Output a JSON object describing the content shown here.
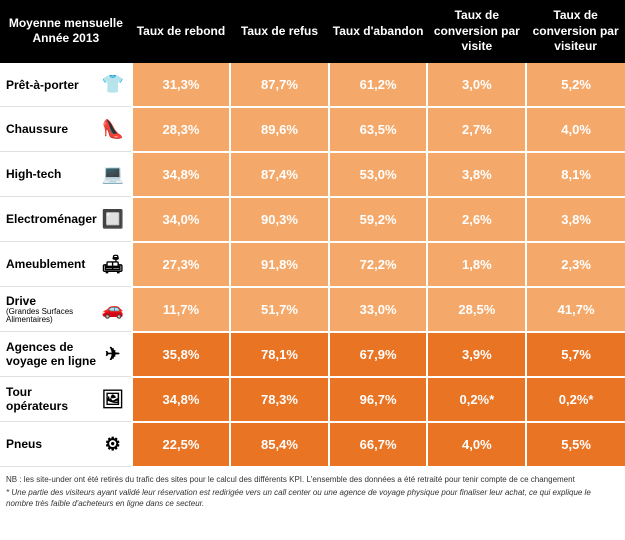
{
  "colors": {
    "header_bg": "#000000",
    "header_text": "#ffffff",
    "cell_light": "#f4a96a",
    "cell_dark": "#e87424",
    "cell_text": "#ffffff",
    "label_bg": "#ffffff",
    "label_text": "#000000"
  },
  "header": {
    "corner_line1": "Moyenne mensuelle",
    "corner_line2": "Année 2013",
    "columns": [
      "Taux de rebond",
      "Taux de refus",
      "Taux d'abandon",
      "Taux de conversion par visite",
      "Taux de conversion par visiteur"
    ]
  },
  "rows": [
    {
      "label": "Prêt-à-porter",
      "sublabel": "",
      "icon": "shirt",
      "shade": "light",
      "values": [
        "31,3%",
        "87,7%",
        "61,2%",
        "3,0%",
        "5,2%"
      ]
    },
    {
      "label": "Chaussure",
      "sublabel": "",
      "icon": "shoe",
      "shade": "light",
      "values": [
        "28,3%",
        "89,6%",
        "63,5%",
        "2,7%",
        "4,0%"
      ]
    },
    {
      "label": "High-tech",
      "sublabel": "",
      "icon": "laptop",
      "shade": "light",
      "values": [
        "34,8%",
        "87,4%",
        "53,0%",
        "3,8%",
        "8,1%"
      ]
    },
    {
      "label": "Electroménager",
      "sublabel": "",
      "icon": "appliance",
      "shade": "light",
      "values": [
        "34,0%",
        "90,3%",
        "59,2%",
        "2,6%",
        "3,8%"
      ]
    },
    {
      "label": "Ameublement",
      "sublabel": "",
      "icon": "sofa",
      "shade": "light",
      "values": [
        "27,3%",
        "91,8%",
        "72,2%",
        "1,8%",
        "2,3%"
      ]
    },
    {
      "label": "Drive",
      "sublabel": "(Grandes Surfaces Alimentaires)",
      "icon": "car",
      "shade": "light",
      "values": [
        "11,7%",
        "51,7%",
        "33,0%",
        "28,5%",
        "41,7%"
      ]
    },
    {
      "label": "Agences de voyage en ligne",
      "sublabel": "",
      "icon": "plane",
      "shade": "dark",
      "values": [
        "35,8%",
        "78,1%",
        "67,9%",
        "3,9%",
        "5,7%"
      ]
    },
    {
      "label": "Tour opérateurs",
      "sublabel": "",
      "icon": "picture",
      "shade": "dark",
      "values": [
        "34,8%",
        "78,3%",
        "96,7%",
        "0,2%*",
        "0,2%*"
      ]
    },
    {
      "label": "Pneus",
      "sublabel": "",
      "icon": "tire",
      "shade": "dark",
      "values": [
        "22,5%",
        "85,4%",
        "66,7%",
        "4,0%",
        "5,5%"
      ]
    }
  ],
  "footnotes": {
    "line1": "NB : les site-under ont été retirés du trafic des sites pour le calcul des différents KPI. L'ensemble des données a été retraité pour tenir compte de ce changement",
    "line2": "* Une partie des visiteurs ayant validé leur réservation est redirigée vers un call center ou une agence de voyage physique pour finaliser leur achat, ce qui explique le nombre très faible d'acheteurs en ligne dans ce secteur."
  },
  "icons": {
    "shirt": "👕",
    "shoe": "👠",
    "laptop": "💻",
    "appliance": "🔲",
    "sofa": "🛋",
    "car": "🚗",
    "plane": "✈",
    "picture": "🖼",
    "tire": "⚙"
  }
}
